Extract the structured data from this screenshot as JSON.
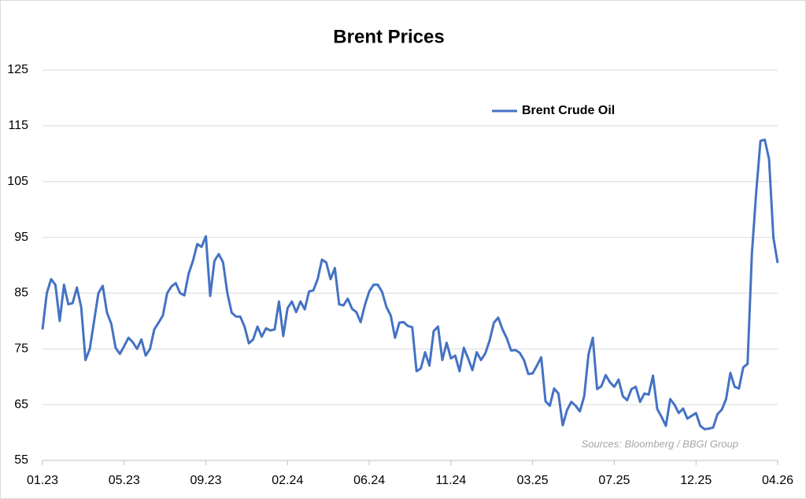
{
  "chart_data": {
    "type": "line",
    "title": "Brent Prices",
    "categories": [
      "01.23",
      null,
      null,
      null,
      null,
      null,
      null,
      null,
      null,
      null,
      null,
      null,
      null,
      null,
      null,
      null,
      null,
      null,
      null,
      "05.23",
      null,
      null,
      null,
      null,
      null,
      null,
      null,
      null,
      null,
      null,
      null,
      null,
      null,
      null,
      null,
      null,
      null,
      null,
      "09.23",
      null,
      null,
      null,
      null,
      null,
      null,
      null,
      null,
      null,
      null,
      null,
      null,
      null,
      null,
      null,
      null,
      null,
      null,
      "02.24",
      null,
      null,
      null,
      null,
      null,
      null,
      null,
      null,
      null,
      null,
      null,
      null,
      null,
      null,
      null,
      null,
      null,
      null,
      "06.24",
      null,
      null,
      null,
      null,
      null,
      null,
      null,
      null,
      null,
      null,
      null,
      null,
      null,
      null,
      null,
      null,
      null,
      null,
      "11.24",
      null,
      null,
      null,
      null,
      null,
      null,
      null,
      null,
      null,
      null,
      null,
      null,
      null,
      null,
      null,
      null,
      null,
      null,
      "03.25",
      null,
      null,
      null,
      null,
      null,
      null,
      null,
      null,
      null,
      null,
      null,
      null,
      null,
      null,
      null,
      null,
      null,
      null,
      "07.25",
      null,
      null,
      null,
      null,
      null,
      null,
      null,
      null,
      null,
      null,
      null,
      null,
      null,
      null,
      null,
      null,
      null,
      null,
      "12.25",
      null,
      null,
      null,
      null,
      null,
      null,
      null,
      null,
      null,
      null,
      null,
      null,
      null,
      null,
      null,
      null,
      null,
      null,
      "04.26"
    ],
    "series": [
      {
        "name": "Brent Crude Oil",
        "color": "#4472c4",
        "values": [
          78.5,
          85,
          87.5,
          86.5,
          80,
          86.5,
          83,
          83.2,
          86,
          82.5,
          73,
          75,
          80,
          85,
          86.3,
          81.5,
          79.5,
          75.2,
          74.1,
          75.5,
          77,
          76.2,
          75,
          76.7,
          73.8,
          75,
          78.5,
          79.7,
          81,
          85,
          86.2,
          86.8,
          85,
          84.6,
          88.5,
          90.8,
          93.8,
          93.3,
          95.2,
          84.5,
          90.8,
          92,
          90.5,
          85,
          81.5,
          80.8,
          80.8,
          79,
          76,
          76.7,
          79,
          77.2,
          78.7,
          78.3,
          78.5,
          83.5,
          77.3,
          82.3,
          83.5,
          81.6,
          83.5,
          82.1,
          85.3,
          85.5,
          87.5,
          91,
          90.5,
          87.5,
          89.5,
          83,
          82.8,
          84,
          82.2,
          81.6,
          79.8,
          82.9,
          85.3,
          86.5,
          86.5,
          85.2,
          82.5,
          81,
          77,
          79.7,
          79.8,
          79.1,
          78.9,
          71,
          71.5,
          74.4,
          72,
          78.2,
          79,
          73,
          76.1,
          73.3,
          73.8,
          71,
          75.2,
          73.3,
          71.2,
          74.4,
          73,
          74.2,
          76.5,
          79.7,
          80.6,
          78.5,
          76.9,
          74.7,
          74.8,
          74.3,
          73,
          70.5,
          70.6,
          72,
          73.5,
          65.6,
          64.8,
          67.9,
          67,
          61.3,
          64,
          65.5,
          64.8,
          63.8,
          66.5,
          74,
          77,
          67.8,
          68.3,
          70.3,
          69,
          68.2,
          69.5,
          66.5,
          65.8,
          67.8,
          68.2,
          65.5,
          67,
          66.8,
          70.2,
          64.2,
          62.8,
          61.2,
          66,
          65,
          63.5,
          64.3,
          62.5,
          63,
          63.5,
          61.2,
          60.6,
          60.7,
          60.9,
          63.3,
          64.1,
          66,
          70.7,
          68.2,
          67.9,
          71.7,
          72.3,
          92,
          103,
          112.3,
          112.5,
          109,
          95,
          90.4
        ]
      }
    ],
    "ylim": [
      55,
      125
    ],
    "yticks": [
      55,
      65,
      75,
      85,
      95,
      105,
      115,
      125
    ],
    "grid": true,
    "annotation": "Sources: Bloomberg / BBGI Group"
  }
}
